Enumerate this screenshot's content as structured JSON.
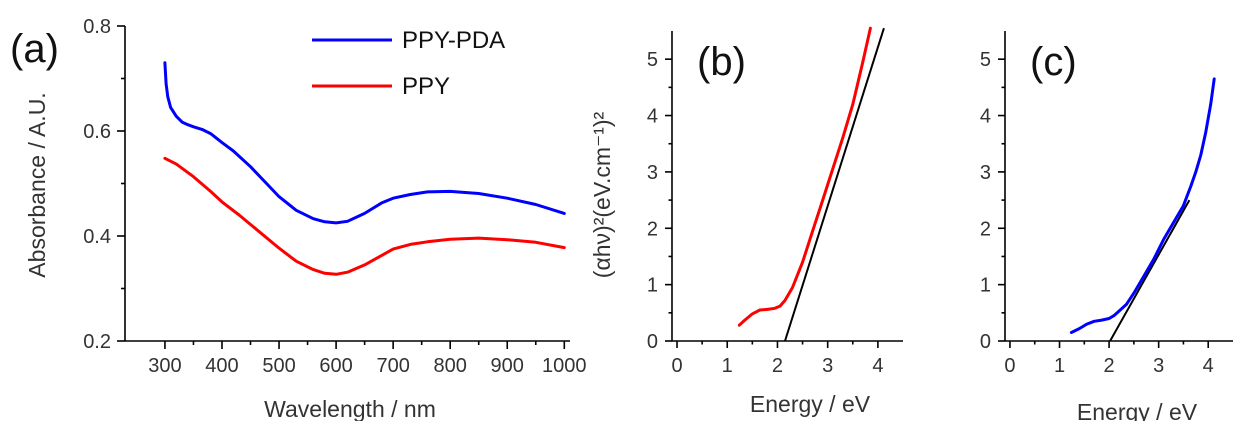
{
  "chart_data": [
    {
      "type": "line",
      "panel_label": "(a)",
      "xlabel": "Wavelength / nm",
      "ylabel": "Absorbance / A.U.",
      "xlim": [
        230,
        1010
      ],
      "ylim": [
        0.2,
        0.8
      ],
      "xticks": [
        300,
        400,
        500,
        600,
        700,
        800,
        900,
        1000
      ],
      "yticks": [
        0.2,
        0.4,
        0.6,
        0.8
      ],
      "yticks_format": 1,
      "legend_position": "top",
      "series": [
        {
          "name": "PPY-PDA",
          "color": "#0000ff",
          "x": [
            300,
            302,
            305,
            310,
            320,
            330,
            340,
            350,
            365,
            380,
            400,
            420,
            450,
            480,
            500,
            530,
            560,
            580,
            600,
            620,
            650,
            680,
            700,
            730,
            760,
            800,
            850,
            900,
            950,
            1000
          ],
          "y": [
            0.73,
            0.69,
            0.665,
            0.645,
            0.628,
            0.617,
            0.612,
            0.608,
            0.603,
            0.595,
            0.578,
            0.562,
            0.532,
            0.498,
            0.475,
            0.449,
            0.433,
            0.427,
            0.425,
            0.428,
            0.443,
            0.463,
            0.472,
            0.479,
            0.484,
            0.485,
            0.481,
            0.472,
            0.46,
            0.443
          ]
        },
        {
          "name": "PPY",
          "color": "#ff0000",
          "x": [
            300,
            320,
            350,
            380,
            400,
            430,
            460,
            500,
            530,
            560,
            580,
            600,
            620,
            650,
            680,
            700,
            730,
            760,
            800,
            850,
            900,
            950,
            1000
          ],
          "y": [
            0.548,
            0.537,
            0.513,
            0.485,
            0.465,
            0.44,
            0.413,
            0.377,
            0.352,
            0.336,
            0.329,
            0.327,
            0.331,
            0.345,
            0.363,
            0.375,
            0.384,
            0.389,
            0.394,
            0.396,
            0.393,
            0.388,
            0.378
          ]
        }
      ]
    },
    {
      "type": "line",
      "panel_label": "(b)",
      "xlabel": "Energy / eV",
      "ylabel": "(αhν)²(eV.cm⁻¹)²",
      "xlim": [
        -0.1,
        4.5
      ],
      "ylim": [
        0,
        5.5
      ],
      "xticks": [
        0,
        1,
        2,
        3,
        4
      ],
      "yticks": [
        0,
        1,
        2,
        3,
        4,
        5
      ],
      "yticks_format": 0,
      "series": [
        {
          "color": "#ff0000",
          "x": [
            1.24,
            1.35,
            1.5,
            1.65,
            1.8,
            1.95,
            2.05,
            2.15,
            2.3,
            2.5,
            2.7,
            2.9,
            3.1,
            3.3,
            3.5,
            3.7,
            3.85
          ],
          "y": [
            0.28,
            0.37,
            0.48,
            0.55,
            0.56,
            0.58,
            0.62,
            0.72,
            0.95,
            1.4,
            1.95,
            2.5,
            3.05,
            3.6,
            4.2,
            4.95,
            5.55
          ]
        }
      ],
      "fit_line": {
        "color": "#000000",
        "x": [
          2.15,
          4.12
        ],
        "y": [
          0,
          5.55
        ]
      }
    },
    {
      "type": "line",
      "panel_label": "(c)",
      "xlabel": "Energy / eV",
      "ylabel": "",
      "xlim": [
        -0.1,
        4.5
      ],
      "ylim": [
        0,
        5.5
      ],
      "xticks": [
        0,
        1,
        2,
        3,
        4
      ],
      "yticks": [
        0,
        1,
        2,
        3,
        4,
        5
      ],
      "yticks_format": 0,
      "series": [
        {
          "color": "#0000ff",
          "x": [
            1.24,
            1.4,
            1.55,
            1.7,
            1.85,
            2.0,
            2.1,
            2.2,
            2.35,
            2.5,
            2.7,
            2.9,
            3.1,
            3.3,
            3.5,
            3.65,
            3.75,
            3.85,
            3.95,
            4.05,
            4.12
          ],
          "y": [
            0.15,
            0.22,
            0.3,
            0.35,
            0.37,
            0.4,
            0.45,
            0.53,
            0.65,
            0.85,
            1.15,
            1.45,
            1.8,
            2.1,
            2.4,
            2.75,
            3.0,
            3.3,
            3.7,
            4.2,
            4.65
          ]
        }
      ],
      "fit_line": {
        "color": "#000000",
        "x": [
          2.02,
          3.62
        ],
        "y": [
          0,
          2.5
        ]
      }
    }
  ]
}
